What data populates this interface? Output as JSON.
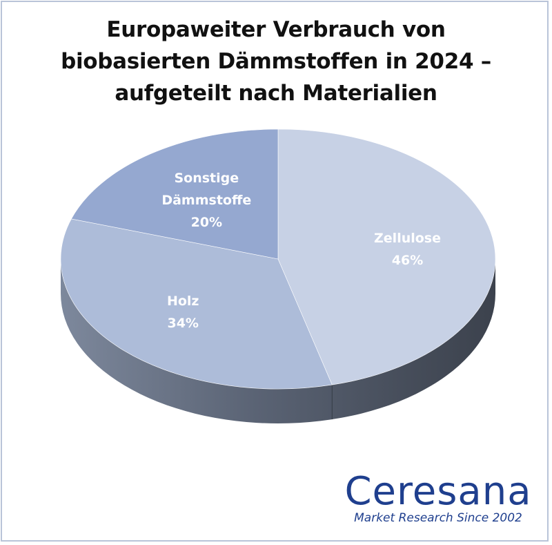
{
  "chart_data": {
    "type": "pie",
    "title": [
      "Europaweiter Verbrauch von",
      "biobasierten Dämmstoffen in 2024 –",
      "aufgeteilt nach Materialien"
    ],
    "slices": [
      {
        "name": "Zellulose",
        "value": 46,
        "label": "46%",
        "color": "#c7d1e5"
      },
      {
        "name": "Holz",
        "value": 34,
        "label": "34%",
        "color": "#adbcd9"
      },
      {
        "name": "Sonstige Dämmstoffe",
        "label_lines": [
          "Sonstige",
          "Dämmstoffe"
        ],
        "value": 20,
        "label": "20%",
        "color": "#95a8d0"
      }
    ]
  },
  "branding": {
    "name": "Ceresana",
    "tagline": "Market Research Since 2002"
  }
}
